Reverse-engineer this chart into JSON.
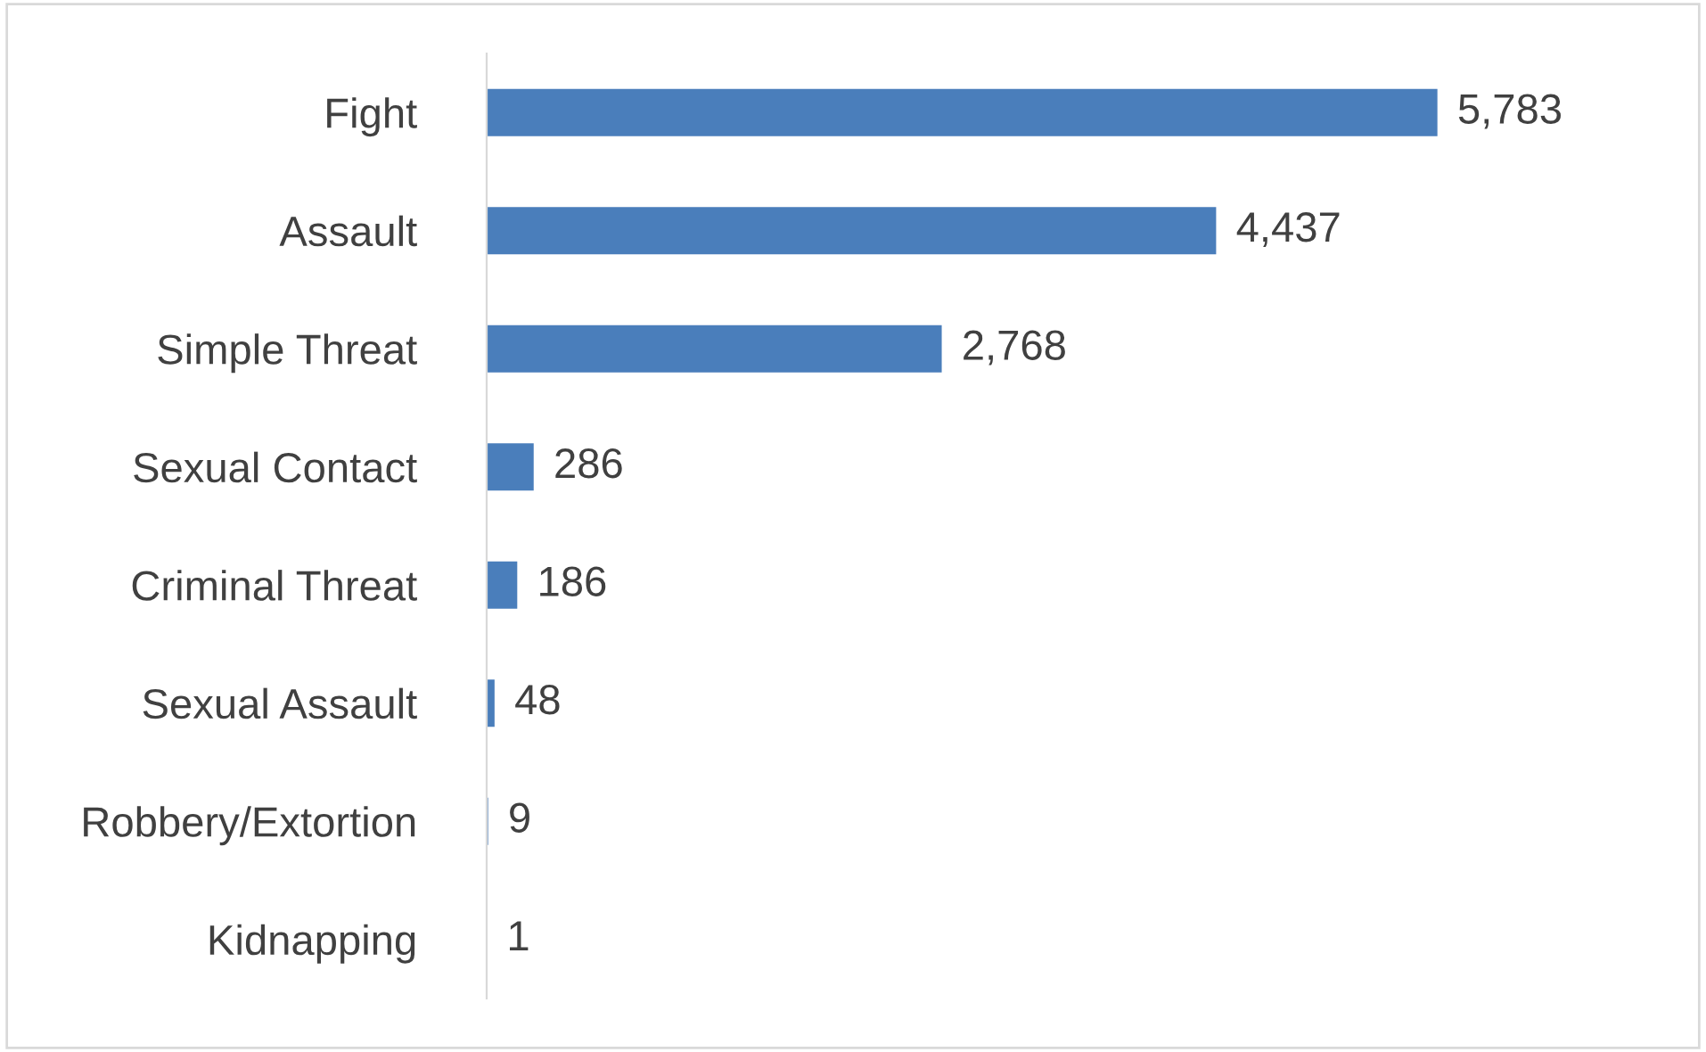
{
  "chart_data": {
    "type": "bar",
    "orientation": "horizontal",
    "categories": [
      "Fight",
      "Assault",
      "Simple Threat",
      "Sexual Contact",
      "Criminal Threat",
      "Sexual Assault",
      "Robbery/Extortion",
      "Kidnapping"
    ],
    "values": [
      5783,
      4437,
      2768,
      286,
      186,
      48,
      9,
      1
    ],
    "value_labels": [
      "5,783",
      "4,437",
      "2,768",
      "286",
      "186",
      "48",
      "9",
      "1"
    ],
    "color": "#4a7ebb",
    "grid": false,
    "legend": false
  }
}
